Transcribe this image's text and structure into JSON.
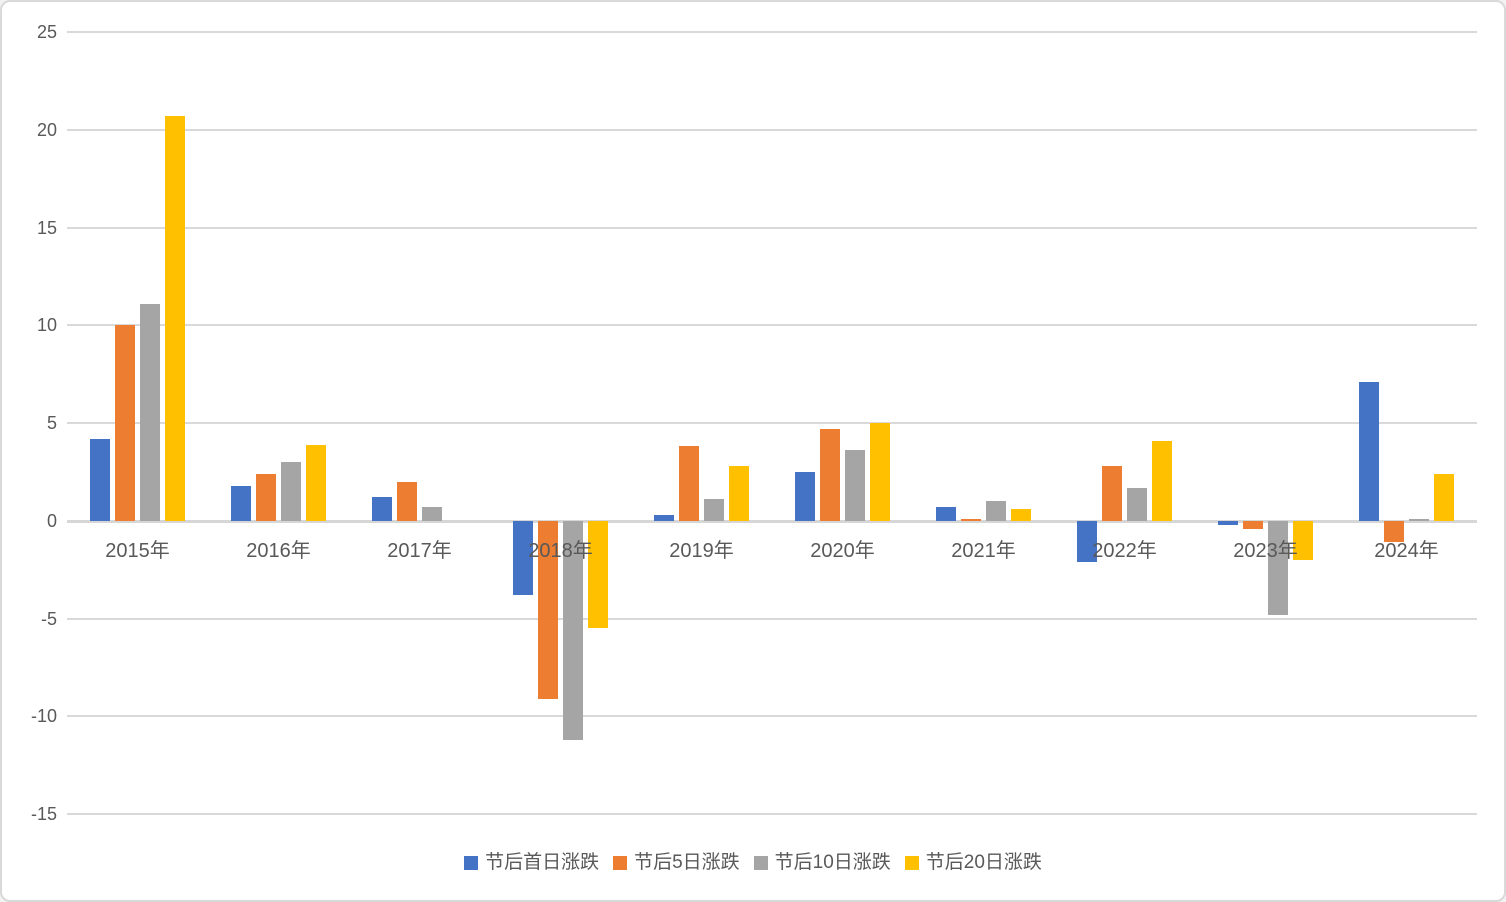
{
  "colors": {
    "series_blue": "#4472C4",
    "series_orange": "#ED7D31",
    "series_gray": "#A5A5A5",
    "series_yellow": "#FFC000",
    "gridline": "#D9D9D9",
    "axis_text": "#595959",
    "frame_border": "#D9D9D9",
    "background": "#FFFFFF"
  },
  "chart_data": {
    "type": "bar",
    "title": "",
    "xlabel": "",
    "ylabel": "",
    "categories": [
      "2015年",
      "2016年",
      "2017年",
      "2018年",
      "2019年",
      "2020年",
      "2021年",
      "2022年",
      "2023年",
      "2024年"
    ],
    "series": [
      {
        "name": "节后首日涨跌",
        "color": "#4472C4",
        "values": [
          4.2,
          1.8,
          1.2,
          -3.8,
          0.3,
          2.5,
          0.7,
          -2.1,
          -0.2,
          7.1
        ]
      },
      {
        "name": "节后5日涨跌",
        "color": "#ED7D31",
        "values": [
          10.0,
          2.4,
          2.0,
          -9.1,
          3.8,
          4.7,
          0.1,
          2.8,
          -0.4,
          -1.1
        ]
      },
      {
        "name": "节后10日涨跌",
        "color": "#A5A5A5",
        "values": [
          11.1,
          3.0,
          0.7,
          -11.2,
          1.1,
          3.6,
          1.0,
          1.7,
          -4.8,
          0.1
        ]
      },
      {
        "name": "节后20日涨跌",
        "color": "#FFC000",
        "values": [
          20.7,
          3.9,
          0,
          -5.5,
          2.8,
          5.0,
          0.6,
          4.1,
          -2.0,
          2.4
        ]
      }
    ],
    "ylim": [
      -15,
      25
    ],
    "yticks": [
      25,
      20,
      15,
      10,
      5,
      0,
      -5,
      -10,
      -15
    ],
    "grid": true,
    "legend_position": "bottom"
  }
}
